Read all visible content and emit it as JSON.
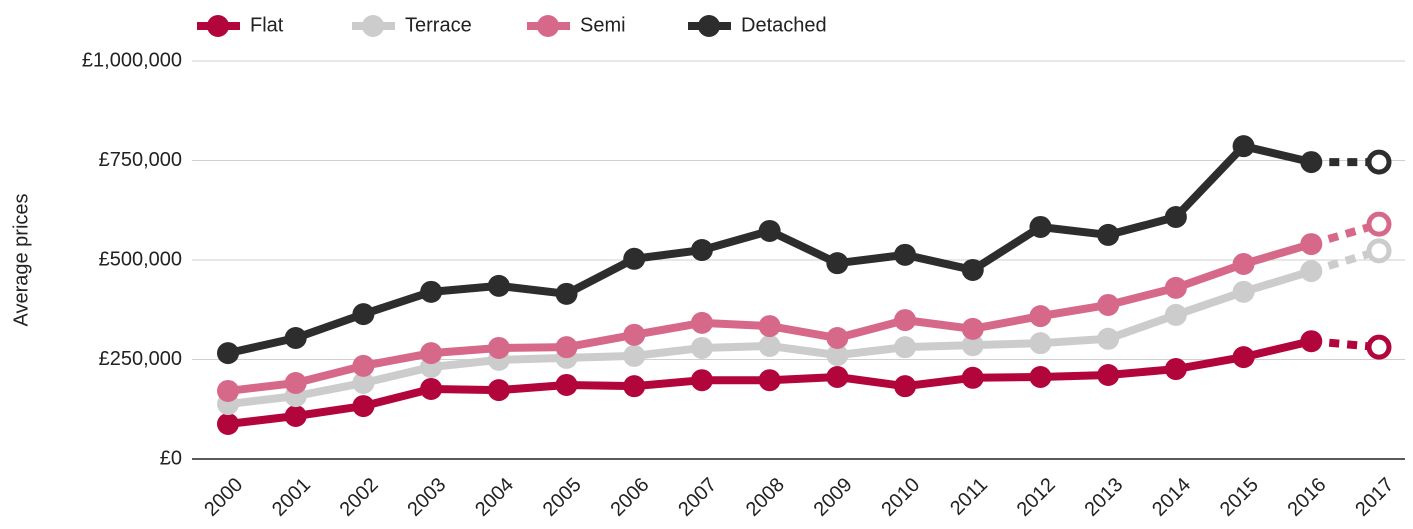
{
  "chart_data": {
    "type": "line",
    "y_label": "Average prices",
    "categories": [
      "2000",
      "2001",
      "2002",
      "2003",
      "2004",
      "2005",
      "2006",
      "2007",
      "2008",
      "2009",
      "2010",
      "2011",
      "2012",
      "2013",
      "2014",
      "2015",
      "2016",
      "2017"
    ],
    "ylim": [
      0,
      1000000
    ],
    "yticks": [
      {
        "value": 0,
        "label": "£0"
      },
      {
        "value": 250000,
        "label": "£250,000"
      },
      {
        "value": 500000,
        "label": "£500,000"
      },
      {
        "value": 750000,
        "label": "£750,000"
      },
      {
        "value": 1000000,
        "label": "£1,000,000"
      }
    ],
    "grid": true,
    "legend": "top",
    "last_point_hollow": true,
    "last_segment_dashed": true,
    "series": [
      {
        "name": "Flat",
        "color": "#b1053b",
        "values": [
          88000,
          108000,
          133000,
          176000,
          173000,
          186000,
          183000,
          198000,
          198000,
          206000,
          183000,
          204000,
          206000,
          211000,
          226000,
          256000,
          296000,
          281000
        ]
      },
      {
        "name": "Terrace",
        "color": "#cccccc",
        "values": [
          138000,
          158000,
          191000,
          231000,
          249000,
          254000,
          259000,
          279000,
          284000,
          261000,
          281000,
          286000,
          291000,
          302000,
          362000,
          420000,
          472000,
          523000
        ]
      },
      {
        "name": "Semi",
        "color": "#d6698a",
        "values": [
          171000,
          191000,
          234000,
          266000,
          279000,
          281000,
          312000,
          342000,
          334000,
          304000,
          349000,
          327000,
          359000,
          387000,
          430000,
          490000,
          540000,
          590000
        ]
      },
      {
        "name": "Detached",
        "color": "#2d2d2d",
        "values": [
          266000,
          304000,
          364000,
          420000,
          435000,
          415000,
          503000,
          525000,
          573000,
          492000,
          513000,
          475000,
          583000,
          563000,
          608000,
          786000,
          746000,
          746000
        ]
      }
    ]
  }
}
